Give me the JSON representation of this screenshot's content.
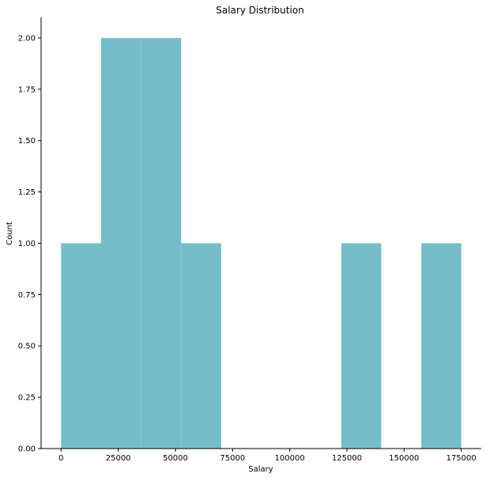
{
  "chart_data": {
    "type": "bar",
    "title": "Salary Distribution",
    "xlabel": "Salary",
    "ylabel": "Count",
    "xlim": [
      -8750,
      183750
    ],
    "ylim": [
      0,
      2.1
    ],
    "grid": false,
    "bar_color": "#76bdca",
    "bins": [
      {
        "x0": 0,
        "x1": 17500,
        "count": 1
      },
      {
        "x0": 17500,
        "x1": 35000,
        "count": 2
      },
      {
        "x0": 35000,
        "x1": 52500,
        "count": 2
      },
      {
        "x0": 52500,
        "x1": 70000,
        "count": 1
      },
      {
        "x0": 70000,
        "x1": 87500,
        "count": 0
      },
      {
        "x0": 87500,
        "x1": 105000,
        "count": 0
      },
      {
        "x0": 105000,
        "x1": 122500,
        "count": 0
      },
      {
        "x0": 122500,
        "x1": 140000,
        "count": 1
      },
      {
        "x0": 140000,
        "x1": 157500,
        "count": 0
      },
      {
        "x0": 157500,
        "x1": 175000,
        "count": 1
      }
    ],
    "x_ticks": [
      {
        "value": 0,
        "label": "0"
      },
      {
        "value": 25000,
        "label": "25000"
      },
      {
        "value": 50000,
        "label": "50000"
      },
      {
        "value": 75000,
        "label": "75000"
      },
      {
        "value": 100000,
        "label": "100000"
      },
      {
        "value": 125000,
        "label": "125000"
      },
      {
        "value": 150000,
        "label": "150000"
      },
      {
        "value": 175000,
        "label": "175000"
      }
    ],
    "y_ticks": [
      {
        "value": 0,
        "label": "0.00"
      },
      {
        "value": 0.25,
        "label": "0.25"
      },
      {
        "value": 0.5,
        "label": "0.50"
      },
      {
        "value": 0.75,
        "label": "0.75"
      },
      {
        "value": 1.0,
        "label": "1.00"
      },
      {
        "value": 1.25,
        "label": "1.25"
      },
      {
        "value": 1.5,
        "label": "1.50"
      },
      {
        "value": 1.75,
        "label": "1.75"
      },
      {
        "value": 2.0,
        "label": "2.00"
      }
    ]
  }
}
